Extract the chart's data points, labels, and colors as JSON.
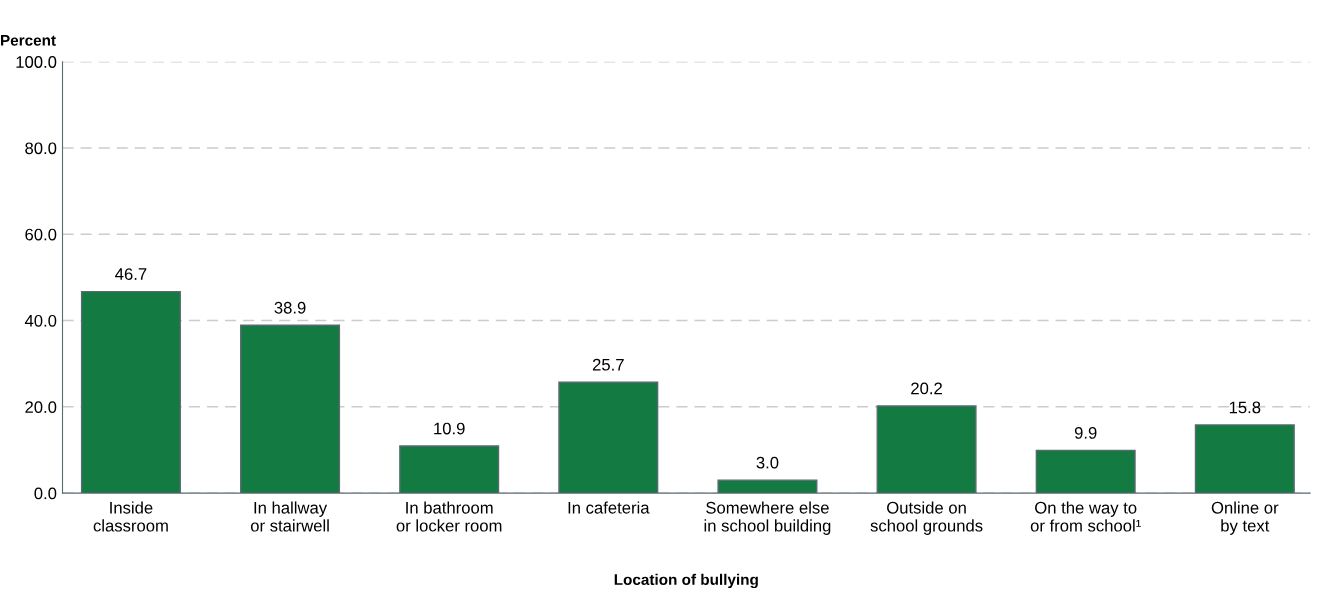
{
  "chart_data": {
    "type": "bar",
    "xlabel": "Location of bullying",
    "ylabel": "Percent",
    "categories": [
      "Inside\nclassroom",
      "In hallway\nor stairwell",
      "In bathroom\nor locker room",
      "In cafeteria",
      "Somewhere else\nin school building",
      "Outside on\nschool grounds",
      "On the way to\nor from school¹",
      "Online or\nby text"
    ],
    "values": [
      46.7,
      38.9,
      10.9,
      25.7,
      3.0,
      20.2,
      9.9,
      15.8
    ],
    "value_labels": [
      "46.7",
      "38.9",
      "10.9",
      "25.7",
      "3.0",
      "20.2",
      "9.9",
      "15.8"
    ],
    "color": "#137a41",
    "ylim": [
      0,
      100
    ],
    "yticks": [
      {
        "value": 0,
        "label": "0.0"
      },
      {
        "value": 20,
        "label": "20.0"
      },
      {
        "value": 40,
        "label": "40.0"
      },
      {
        "value": 60,
        "label": "60.0"
      },
      {
        "value": 80,
        "label": "80.0"
      },
      {
        "value": 100,
        "label": "100.0"
      }
    ],
    "grid": "y",
    "legend": false
  }
}
